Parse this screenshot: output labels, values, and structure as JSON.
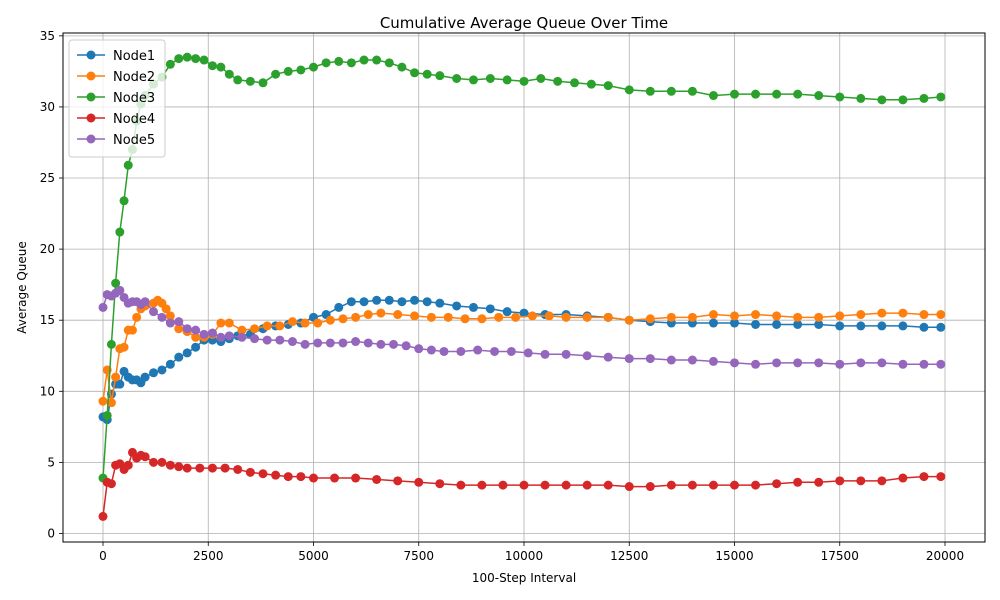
{
  "chart_data": {
    "type": "line",
    "title": "Cumulative Average Queue Over Time",
    "xlabel": "100-Step Interval",
    "ylabel": "Average Queue",
    "xlim": [
      -950,
      20950
    ],
    "ylim": [
      -0.6,
      35.2
    ],
    "xticks": [
      0,
      2500,
      5000,
      7500,
      10000,
      12500,
      15000,
      17500,
      20000
    ],
    "yticks": [
      0,
      5,
      10,
      15,
      20,
      25,
      30,
      35
    ],
    "grid": true,
    "legend_position": "top-left",
    "marker": "circle",
    "series": [
      {
        "name": "Node1",
        "color": "#1f77b4",
        "points": [
          [
            0,
            8.2
          ],
          [
            100,
            8.0
          ],
          [
            200,
            9.8
          ],
          [
            300,
            10.5
          ],
          [
            400,
            10.5
          ],
          [
            500,
            11.4
          ],
          [
            600,
            11.0
          ],
          [
            700,
            10.8
          ],
          [
            800,
            10.8
          ],
          [
            900,
            10.6
          ],
          [
            1000,
            11.0
          ],
          [
            1200,
            11.3
          ],
          [
            1400,
            11.5
          ],
          [
            1600,
            11.9
          ],
          [
            1800,
            12.4
          ],
          [
            2000,
            12.7
          ],
          [
            2200,
            13.1
          ],
          [
            2400,
            13.6
          ],
          [
            2600,
            13.6
          ],
          [
            2800,
            13.5
          ],
          [
            3000,
            13.7
          ],
          [
            3200,
            13.9
          ],
          [
            3500,
            14.0
          ],
          [
            3800,
            14.4
          ],
          [
            4100,
            14.6
          ],
          [
            4400,
            14.7
          ],
          [
            4700,
            14.8
          ],
          [
            5000,
            15.2
          ],
          [
            5300,
            15.4
          ],
          [
            5600,
            15.9
          ],
          [
            5900,
            16.3
          ],
          [
            6200,
            16.3
          ],
          [
            6500,
            16.4
          ],
          [
            6800,
            16.4
          ],
          [
            7100,
            16.3
          ],
          [
            7400,
            16.4
          ],
          [
            7700,
            16.3
          ],
          [
            8000,
            16.2
          ],
          [
            8400,
            16.0
          ],
          [
            8800,
            15.9
          ],
          [
            9200,
            15.8
          ],
          [
            9600,
            15.6
          ],
          [
            10000,
            15.5
          ],
          [
            10500,
            15.4
          ],
          [
            11000,
            15.4
          ],
          [
            11500,
            15.3
          ],
          [
            12000,
            15.2
          ],
          [
            12500,
            15.0
          ],
          [
            13000,
            14.9
          ],
          [
            13500,
            14.8
          ],
          [
            14000,
            14.8
          ],
          [
            14500,
            14.8
          ],
          [
            15000,
            14.8
          ],
          [
            15500,
            14.7
          ],
          [
            16000,
            14.7
          ],
          [
            16500,
            14.7
          ],
          [
            17000,
            14.7
          ],
          [
            17500,
            14.6
          ],
          [
            18000,
            14.6
          ],
          [
            18500,
            14.6
          ],
          [
            19000,
            14.6
          ],
          [
            19500,
            14.5
          ],
          [
            19900,
            14.5
          ]
        ]
      },
      {
        "name": "Node2",
        "color": "#ff7f0e",
        "points": [
          [
            0,
            9.3
          ],
          [
            100,
            11.5
          ],
          [
            200,
            9.2
          ],
          [
            300,
            11.0
          ],
          [
            400,
            13.0
          ],
          [
            500,
            13.1
          ],
          [
            600,
            14.3
          ],
          [
            700,
            14.3
          ],
          [
            800,
            15.2
          ],
          [
            900,
            15.8
          ],
          [
            1000,
            16.0
          ],
          [
            1200,
            16.2
          ],
          [
            1300,
            16.4
          ],
          [
            1400,
            16.2
          ],
          [
            1500,
            15.8
          ],
          [
            1600,
            15.3
          ],
          [
            1800,
            14.4
          ],
          [
            2000,
            14.2
          ],
          [
            2200,
            13.8
          ],
          [
            2400,
            13.8
          ],
          [
            2600,
            14.0
          ],
          [
            2800,
            14.8
          ],
          [
            3000,
            14.8
          ],
          [
            3300,
            14.3
          ],
          [
            3600,
            14.4
          ],
          [
            3900,
            14.6
          ],
          [
            4200,
            14.6
          ],
          [
            4500,
            14.9
          ],
          [
            4800,
            14.8
          ],
          [
            5100,
            14.8
          ],
          [
            5400,
            15.0
          ],
          [
            5700,
            15.1
          ],
          [
            6000,
            15.2
          ],
          [
            6300,
            15.4
          ],
          [
            6600,
            15.5
          ],
          [
            7000,
            15.4
          ],
          [
            7400,
            15.3
          ],
          [
            7800,
            15.2
          ],
          [
            8200,
            15.2
          ],
          [
            8600,
            15.1
          ],
          [
            9000,
            15.1
          ],
          [
            9400,
            15.2
          ],
          [
            9800,
            15.2
          ],
          [
            10200,
            15.3
          ],
          [
            10600,
            15.3
          ],
          [
            11000,
            15.2
          ],
          [
            11500,
            15.2
          ],
          [
            12000,
            15.2
          ],
          [
            12500,
            15.0
          ],
          [
            13000,
            15.1
          ],
          [
            13500,
            15.2
          ],
          [
            14000,
            15.2
          ],
          [
            14500,
            15.4
          ],
          [
            15000,
            15.3
          ],
          [
            15500,
            15.4
          ],
          [
            16000,
            15.3
          ],
          [
            16500,
            15.2
          ],
          [
            17000,
            15.2
          ],
          [
            17500,
            15.3
          ],
          [
            18000,
            15.4
          ],
          [
            18500,
            15.5
          ],
          [
            19000,
            15.5
          ],
          [
            19500,
            15.4
          ],
          [
            19900,
            15.4
          ]
        ]
      },
      {
        "name": "Node3",
        "color": "#2ca02c",
        "points": [
          [
            0,
            3.9
          ],
          [
            100,
            8.3
          ],
          [
            200,
            13.3
          ],
          [
            300,
            17.6
          ],
          [
            400,
            21.2
          ],
          [
            500,
            23.4
          ],
          [
            600,
            25.9
          ],
          [
            700,
            27.0
          ],
          [
            800,
            29.0
          ],
          [
            900,
            30.2
          ],
          [
            1000,
            30.8
          ],
          [
            1200,
            31.6
          ],
          [
            1400,
            32.1
          ],
          [
            1600,
            33.0
          ],
          [
            1800,
            33.4
          ],
          [
            2000,
            33.5
          ],
          [
            2200,
            33.4
          ],
          [
            2400,
            33.3
          ],
          [
            2600,
            32.9
          ],
          [
            2800,
            32.8
          ],
          [
            3000,
            32.3
          ],
          [
            3200,
            31.9
          ],
          [
            3500,
            31.8
          ],
          [
            3800,
            31.7
          ],
          [
            4100,
            32.3
          ],
          [
            4400,
            32.5
          ],
          [
            4700,
            32.6
          ],
          [
            5000,
            32.8
          ],
          [
            5300,
            33.1
          ],
          [
            5600,
            33.2
          ],
          [
            5900,
            33.1
          ],
          [
            6200,
            33.3
          ],
          [
            6500,
            33.3
          ],
          [
            6800,
            33.1
          ],
          [
            7100,
            32.8
          ],
          [
            7400,
            32.4
          ],
          [
            7700,
            32.3
          ],
          [
            8000,
            32.2
          ],
          [
            8400,
            32.0
          ],
          [
            8800,
            31.9
          ],
          [
            9200,
            32.0
          ],
          [
            9600,
            31.9
          ],
          [
            10000,
            31.8
          ],
          [
            10400,
            32.0
          ],
          [
            10800,
            31.8
          ],
          [
            11200,
            31.7
          ],
          [
            11600,
            31.6
          ],
          [
            12000,
            31.5
          ],
          [
            12500,
            31.2
          ],
          [
            13000,
            31.1
          ],
          [
            13500,
            31.1
          ],
          [
            14000,
            31.1
          ],
          [
            14500,
            30.8
          ],
          [
            15000,
            30.9
          ],
          [
            15500,
            30.9
          ],
          [
            16000,
            30.9
          ],
          [
            16500,
            30.9
          ],
          [
            17000,
            30.8
          ],
          [
            17500,
            30.7
          ],
          [
            18000,
            30.6
          ],
          [
            18500,
            30.5
          ],
          [
            19000,
            30.5
          ],
          [
            19500,
            30.6
          ],
          [
            19900,
            30.7
          ]
        ]
      },
      {
        "name": "Node4",
        "color": "#d62728",
        "points": [
          [
            0,
            1.2
          ],
          [
            100,
            3.6
          ],
          [
            200,
            3.5
          ],
          [
            300,
            4.8
          ],
          [
            400,
            4.9
          ],
          [
            500,
            4.5
          ],
          [
            600,
            4.8
          ],
          [
            700,
            5.7
          ],
          [
            800,
            5.3
          ],
          [
            900,
            5.5
          ],
          [
            1000,
            5.4
          ],
          [
            1200,
            5.0
          ],
          [
            1400,
            5.0
          ],
          [
            1600,
            4.8
          ],
          [
            1800,
            4.7
          ],
          [
            2000,
            4.6
          ],
          [
            2300,
            4.6
          ],
          [
            2600,
            4.6
          ],
          [
            2900,
            4.6
          ],
          [
            3200,
            4.5
          ],
          [
            3500,
            4.3
          ],
          [
            3800,
            4.2
          ],
          [
            4100,
            4.1
          ],
          [
            4400,
            4.0
          ],
          [
            4700,
            4.0
          ],
          [
            5000,
            3.9
          ],
          [
            5500,
            3.9
          ],
          [
            6000,
            3.9
          ],
          [
            6500,
            3.8
          ],
          [
            7000,
            3.7
          ],
          [
            7500,
            3.6
          ],
          [
            8000,
            3.5
          ],
          [
            8500,
            3.4
          ],
          [
            9000,
            3.4
          ],
          [
            9500,
            3.4
          ],
          [
            10000,
            3.4
          ],
          [
            10500,
            3.4
          ],
          [
            11000,
            3.4
          ],
          [
            11500,
            3.4
          ],
          [
            12000,
            3.4
          ],
          [
            12500,
            3.3
          ],
          [
            13000,
            3.3
          ],
          [
            13500,
            3.4
          ],
          [
            14000,
            3.4
          ],
          [
            14500,
            3.4
          ],
          [
            15000,
            3.4
          ],
          [
            15500,
            3.4
          ],
          [
            16000,
            3.5
          ],
          [
            16500,
            3.6
          ],
          [
            17000,
            3.6
          ],
          [
            17500,
            3.7
          ],
          [
            18000,
            3.7
          ],
          [
            18500,
            3.7
          ],
          [
            19000,
            3.9
          ],
          [
            19500,
            4.0
          ],
          [
            19900,
            4.0
          ]
        ]
      },
      {
        "name": "Node5",
        "color": "#9467bd",
        "points": [
          [
            0,
            15.9
          ],
          [
            100,
            16.8
          ],
          [
            200,
            16.7
          ],
          [
            300,
            16.9
          ],
          [
            400,
            17.1
          ],
          [
            500,
            16.6
          ],
          [
            600,
            16.2
          ],
          [
            700,
            16.3
          ],
          [
            800,
            16.3
          ],
          [
            900,
            16.1
          ],
          [
            1000,
            16.3
          ],
          [
            1200,
            15.6
          ],
          [
            1400,
            15.2
          ],
          [
            1600,
            14.8
          ],
          [
            1800,
            14.9
          ],
          [
            2000,
            14.4
          ],
          [
            2200,
            14.3
          ],
          [
            2400,
            14.0
          ],
          [
            2600,
            14.1
          ],
          [
            2800,
            13.8
          ],
          [
            3000,
            13.9
          ],
          [
            3300,
            13.8
          ],
          [
            3600,
            13.7
          ],
          [
            3900,
            13.6
          ],
          [
            4200,
            13.6
          ],
          [
            4500,
            13.5
          ],
          [
            4800,
            13.3
          ],
          [
            5100,
            13.4
          ],
          [
            5400,
            13.4
          ],
          [
            5700,
            13.4
          ],
          [
            6000,
            13.5
          ],
          [
            6300,
            13.4
          ],
          [
            6600,
            13.3
          ],
          [
            6900,
            13.3
          ],
          [
            7200,
            13.2
          ],
          [
            7500,
            13.0
          ],
          [
            7800,
            12.9
          ],
          [
            8100,
            12.8
          ],
          [
            8500,
            12.8
          ],
          [
            8900,
            12.9
          ],
          [
            9300,
            12.8
          ],
          [
            9700,
            12.8
          ],
          [
            10100,
            12.7
          ],
          [
            10500,
            12.6
          ],
          [
            11000,
            12.6
          ],
          [
            11500,
            12.5
          ],
          [
            12000,
            12.4
          ],
          [
            12500,
            12.3
          ],
          [
            13000,
            12.3
          ],
          [
            13500,
            12.2
          ],
          [
            14000,
            12.2
          ],
          [
            14500,
            12.1
          ],
          [
            15000,
            12.0
          ],
          [
            15500,
            11.9
          ],
          [
            16000,
            12.0
          ],
          [
            16500,
            12.0
          ],
          [
            17000,
            12.0
          ],
          [
            17500,
            11.9
          ],
          [
            18000,
            12.0
          ],
          [
            18500,
            12.0
          ],
          [
            19000,
            11.9
          ],
          [
            19500,
            11.9
          ],
          [
            19900,
            11.9
          ]
        ]
      }
    ]
  }
}
